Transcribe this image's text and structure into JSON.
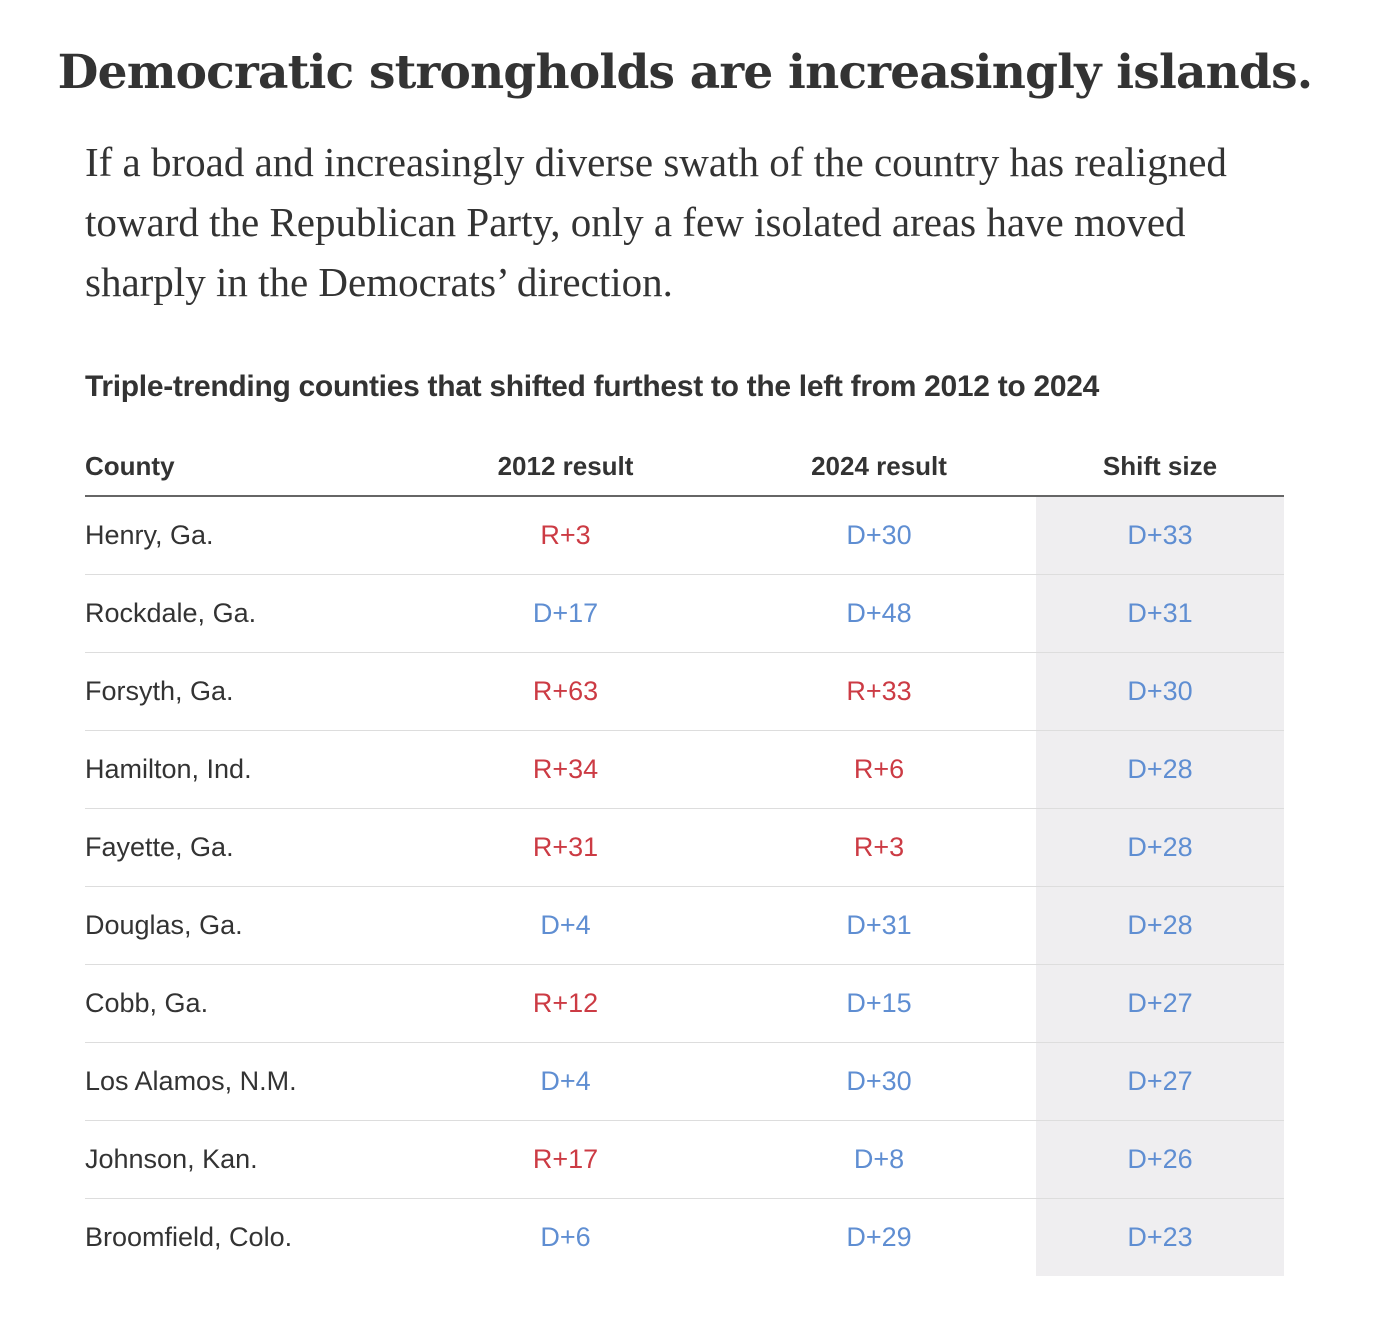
{
  "headline": "Democratic strongholds are increasingly islands.",
  "intro": "If a broad and increasingly diverse swath of the country has realigned toward the Republican Party, only a few isolated areas have moved sharply in the Democrats’ direction.",
  "table": {
    "title": "Triple-trending counties that shifted furthest to the left from 2012 to 2024",
    "columns": [
      "County",
      "2012 result",
      "2024 result",
      "Shift size"
    ],
    "rows": [
      {
        "county": "Henry, Ga.",
        "r2012": "R+3",
        "r2024": "D+30",
        "shift": "D+33"
      },
      {
        "county": "Rockdale, Ga.",
        "r2012": "D+17",
        "r2024": "D+48",
        "shift": "D+31"
      },
      {
        "county": "Forsyth, Ga.",
        "r2012": "R+63",
        "r2024": "R+33",
        "shift": "D+30"
      },
      {
        "county": "Hamilton, Ind.",
        "r2012": "R+34",
        "r2024": "R+6",
        "shift": "D+28"
      },
      {
        "county": "Fayette, Ga.",
        "r2012": "R+31",
        "r2024": "R+3",
        "shift": "D+28"
      },
      {
        "county": "Douglas, Ga.",
        "r2012": "D+4",
        "r2024": "D+31",
        "shift": "D+28"
      },
      {
        "county": "Cobb, Ga.",
        "r2012": "R+12",
        "r2024": "D+15",
        "shift": "D+27"
      },
      {
        "county": "Los Alamos, N.M.",
        "r2012": "D+4",
        "r2024": "D+30",
        "shift": "D+27"
      },
      {
        "county": "Johnson, Kan.",
        "r2012": "R+17",
        "r2024": "D+8",
        "shift": "D+26"
      },
      {
        "county": "Broomfield, Colo.",
        "r2012": "D+6",
        "r2024": "D+29",
        "shift": "D+23"
      }
    ]
  },
  "colors": {
    "republican": "#cc3b44",
    "democrat": "#5f8ed2",
    "shift_column_bg": "#efeef0",
    "text": "#333333"
  }
}
